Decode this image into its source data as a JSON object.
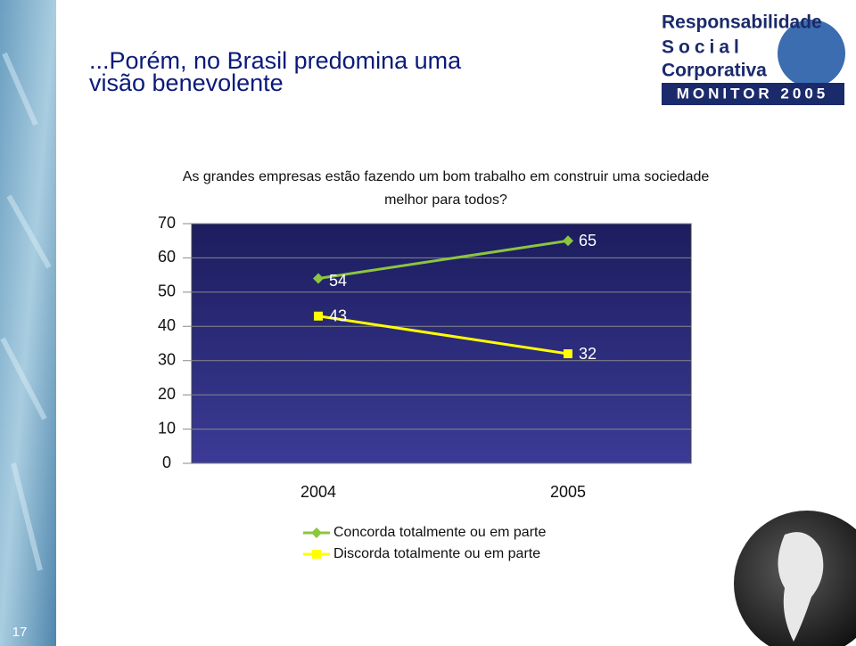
{
  "slide": {
    "title": [
      "...Porém, no Brasil predomina uma",
      "visão benevolente"
    ],
    "logo": [
      "Responsabilidade",
      "Social",
      "Corporativa",
      "MONITOR 2005"
    ],
    "page_number": "17"
  },
  "chart_data": {
    "type": "line",
    "title": [
      "As grandes empresas estão fazendo um bom trabalho  em construir uma sociedade",
      "melhor para todos?"
    ],
    "categories": [
      "2004",
      "2005"
    ],
    "series": [
      {
        "name": "Concorda totalmente ou em parte",
        "color": "#8cc63f",
        "values": [
          54,
          65
        ]
      },
      {
        "name": "Discorda totalmente ou em parte",
        "color": "#ffff00",
        "values": [
          43,
          32
        ]
      }
    ],
    "ylim": [
      0,
      70
    ],
    "yticks": [
      0,
      10,
      20,
      30,
      40,
      50,
      60,
      70
    ],
    "grid": true,
    "legend": "bottom"
  }
}
